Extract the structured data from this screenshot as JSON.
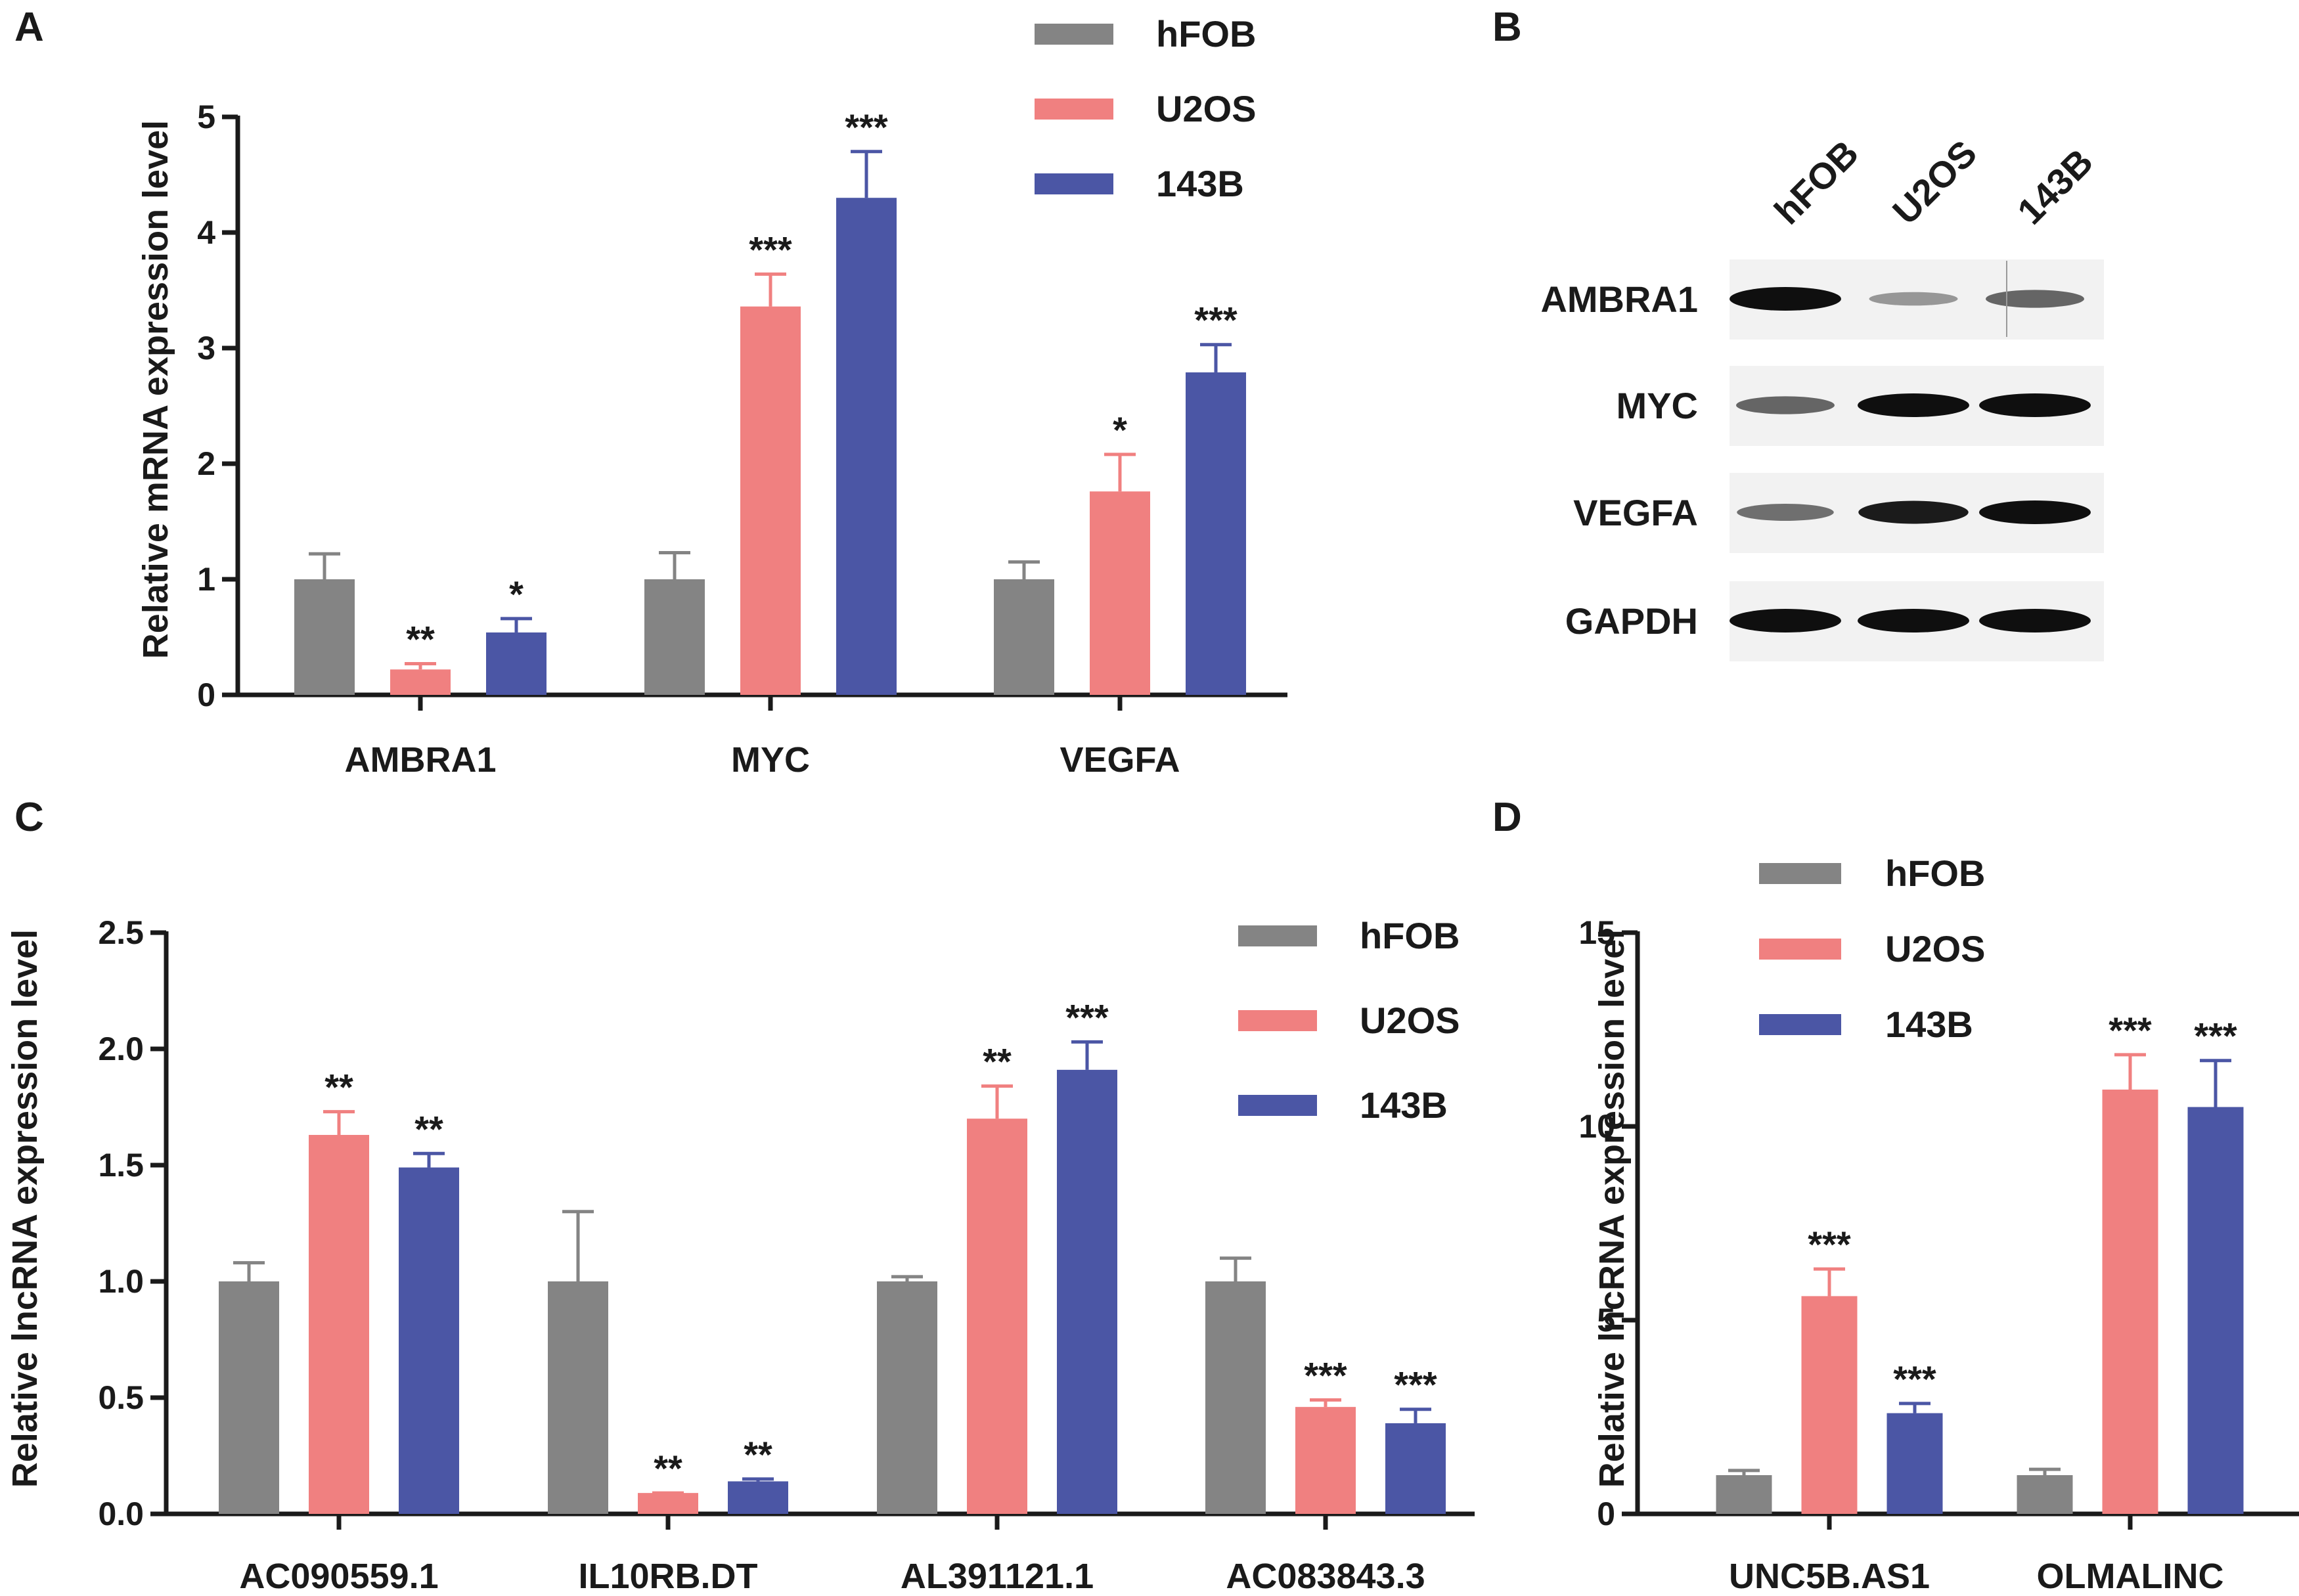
{
  "colors": {
    "hFOB": "#848484",
    "U2OS": "#F08080",
    "143B": "#4B56A5",
    "axis": "#1a1a1a"
  },
  "chart_data": [
    {
      "panel": "A",
      "type": "bar",
      "ylabel": "Relative mRNA expression level",
      "ylim": [
        0,
        5
      ],
      "yticks": [
        0,
        1,
        2,
        3,
        4,
        5
      ],
      "ytick_labels": [
        "0",
        "1",
        "2",
        "3",
        "4",
        "5"
      ],
      "categories": [
        "AMBRA1",
        "MYC",
        "VEGFA"
      ],
      "legend": [
        "hFOB",
        "U2OS",
        "143B"
      ],
      "series": [
        {
          "name": "hFOB",
          "values": [
            1.0,
            1.0,
            1.0
          ],
          "errors": [
            0.22,
            0.23,
            0.15
          ],
          "sig": [
            "",
            "",
            ""
          ]
        },
        {
          "name": "U2OS",
          "values": [
            0.22,
            3.36,
            1.76
          ],
          "errors": [
            0.05,
            0.28,
            0.32
          ],
          "sig": [
            "**",
            "***",
            "*"
          ]
        },
        {
          "name": "143B",
          "values": [
            0.54,
            4.3,
            2.79
          ],
          "errors": [
            0.12,
            0.4,
            0.24
          ],
          "sig": [
            "*",
            "***",
            "***"
          ]
        }
      ]
    },
    {
      "panel": "C",
      "type": "bar",
      "ylabel": "Relative lncRNA expression level",
      "ylim": [
        0,
        2.5
      ],
      "yticks": [
        0,
        0.5,
        1.0,
        1.5,
        2.0,
        2.5
      ],
      "ytick_labels": [
        "0.0",
        "0.5",
        "1.0",
        "1.5",
        "2.0",
        "2.5"
      ],
      "categories": [
        "AC090559.1",
        "IL10RB.DT",
        "AL391121.1",
        "AC083843.3"
      ],
      "legend": [
        "hFOB",
        "U2OS",
        "143B"
      ],
      "series": [
        {
          "name": "hFOB",
          "values": [
            1.0,
            1.0,
            1.0,
            1.0
          ],
          "errors": [
            0.08,
            0.3,
            0.02,
            0.1
          ],
          "sig": [
            "",
            "",
            "",
            ""
          ]
        },
        {
          "name": "U2OS",
          "values": [
            1.63,
            0.09,
            1.7,
            0.46
          ],
          "errors": [
            0.1,
            0.0,
            0.14,
            0.03
          ],
          "sig": [
            "**",
            "**",
            "**",
            "***"
          ]
        },
        {
          "name": "143B",
          "values": [
            1.49,
            0.14,
            1.91,
            0.39
          ],
          "errors": [
            0.06,
            0.01,
            0.12,
            0.06
          ],
          "sig": [
            "**",
            "**",
            "***",
            "***"
          ]
        }
      ]
    },
    {
      "panel": "D",
      "type": "bar",
      "ylabel": "Relative lncRNA expression level",
      "ylim": [
        0,
        15
      ],
      "yticks": [
        0,
        5,
        10,
        15
      ],
      "ytick_labels": [
        "0",
        "5",
        "10",
        "15"
      ],
      "categories": [
        "UNC5B.AS1",
        "OLMALINC"
      ],
      "legend": [
        "hFOB",
        "U2OS",
        "143B"
      ],
      "series": [
        {
          "name": "hFOB",
          "values": [
            1.0,
            1.0
          ],
          "errors": [
            0.12,
            0.15
          ],
          "sig": [
            "",
            ""
          ]
        },
        {
          "name": "U2OS",
          "values": [
            5.62,
            10.95
          ],
          "errors": [
            0.7,
            0.9
          ],
          "sig": [
            "***",
            "***"
          ]
        },
        {
          "name": "143B",
          "values": [
            2.6,
            10.5
          ],
          "errors": [
            0.25,
            1.2
          ],
          "sig": [
            "***",
            "***"
          ]
        }
      ]
    }
  ],
  "panel_labels": {
    "A": "A",
    "B": "B",
    "C": "C",
    "D": "D"
  },
  "western_blot": {
    "lanes": [
      "hFOB",
      "U2OS",
      "143B"
    ],
    "rows": [
      {
        "label": "AMBRA1",
        "intensity": [
          1.0,
          0.3,
          0.6
        ]
      },
      {
        "label": "MYC",
        "intensity": [
          0.6,
          1.0,
          1.0
        ]
      },
      {
        "label": "VEGFA",
        "intensity": [
          0.55,
          0.95,
          1.0
        ]
      },
      {
        "label": "GAPDH",
        "intensity": [
          1.0,
          1.0,
          1.0
        ]
      }
    ]
  }
}
